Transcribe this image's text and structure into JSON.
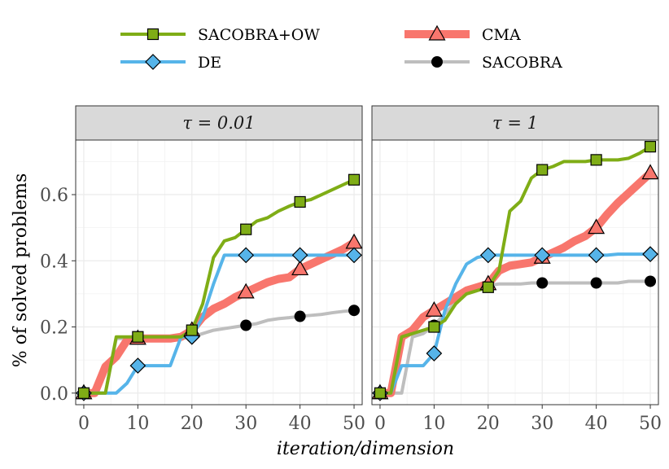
{
  "chart_data": {
    "type": "line",
    "xlabel": "iteration/dimension",
    "ylabel": "% of solved problems",
    "xlim": [
      -1.5,
      51.5
    ],
    "ylim": [
      -0.035,
      0.765
    ],
    "x_ticks": [
      0,
      10,
      20,
      30,
      40,
      50
    ],
    "y_ticks": [
      0.0,
      0.2,
      0.4,
      0.6
    ],
    "x_tick_labels": [
      "0",
      "10",
      "20",
      "30",
      "40",
      "50"
    ],
    "y_tick_labels": [
      "0.0",
      "0.2",
      "0.4",
      "0.6"
    ],
    "grid": true,
    "legend_position": "top",
    "legend": [
      {
        "name": "SACOBRA+OW",
        "color": "#7fad16",
        "marker": "square"
      },
      {
        "name": "DE",
        "color": "#56b4e9",
        "marker": "diamond"
      },
      {
        "name": "CMA",
        "color": "#f8766d",
        "marker": "triangle"
      },
      {
        "name": "SACOBRA",
        "color": "#bebebe",
        "marker": "circle"
      }
    ],
    "panels": [
      {
        "title": "τ = 0.01",
        "series": [
          {
            "name": "SACOBRA+OW",
            "x": [
              0,
              2,
              4,
              6,
              8,
              10,
              12,
              14,
              16,
              18,
              20,
              22,
              24,
              26,
              28,
              30,
              32,
              34,
              36,
              38,
              40,
              42,
              44,
              46,
              48,
              50
            ],
            "y": [
              0,
              0,
              0,
              0.17,
              0.17,
              0.17,
              0.17,
              0.17,
              0.17,
              0.17,
              0.19,
              0.27,
              0.41,
              0.46,
              0.47,
              0.495,
              0.52,
              0.53,
              0.55,
              0.565,
              0.578,
              0.585,
              0.6,
              0.615,
              0.63,
              0.645
            ],
            "markers_x": [
              0,
              10,
              20,
              30,
              40,
              50
            ],
            "markers_y": [
              0,
              0.17,
              0.19,
              0.495,
              0.578,
              0.645
            ]
          },
          {
            "name": "DE",
            "x": [
              0,
              2,
              4,
              6,
              8,
              10,
              12,
              14,
              16,
              18,
              20,
              22,
              24,
              26,
              28,
              30,
              32,
              34,
              36,
              38,
              40,
              42,
              44,
              46,
              48,
              50
            ],
            "y": [
              0,
              0,
              0,
              0,
              0.03,
              0.083,
              0.083,
              0.083,
              0.083,
              0.17,
              0.17,
              0.23,
              0.33,
              0.417,
              0.417,
              0.417,
              0.417,
              0.417,
              0.417,
              0.417,
              0.417,
              0.417,
              0.417,
              0.417,
              0.417,
              0.417
            ],
            "markers_x": [
              0,
              10,
              20,
              30,
              40,
              50
            ],
            "markers_y": [
              0,
              0.083,
              0.17,
              0.417,
              0.417,
              0.417
            ]
          },
          {
            "name": "CMA",
            "x": [
              0,
              2,
              4,
              6,
              8,
              10,
              12,
              14,
              16,
              18,
              20,
              22,
              24,
              26,
              28,
              30,
              32,
              34,
              36,
              38,
              40,
              42,
              44,
              46,
              48,
              50
            ],
            "y": [
              0,
              0,
              0.08,
              0.11,
              0.16,
              0.165,
              0.165,
              0.165,
              0.165,
              0.17,
              0.19,
              0.23,
              0.255,
              0.27,
              0.29,
              0.305,
              0.32,
              0.335,
              0.345,
              0.35,
              0.375,
              0.39,
              0.405,
              0.42,
              0.435,
              0.455
            ],
            "markers_x": [
              0,
              10,
              20,
              30,
              40,
              50
            ],
            "markers_y": [
              0,
              0.165,
              0.19,
              0.305,
              0.375,
              0.455
            ]
          },
          {
            "name": "SACOBRA",
            "x": [
              0,
              2,
              4,
              6,
              8,
              10,
              12,
              14,
              16,
              18,
              20,
              22,
              24,
              26,
              28,
              30,
              32,
              34,
              36,
              38,
              40,
              42,
              44,
              46,
              48,
              50
            ],
            "y": [
              0,
              0,
              0,
              0.165,
              0.165,
              0.165,
              0.165,
              0.165,
              0.165,
              0.165,
              0.17,
              0.18,
              0.19,
              0.195,
              0.2,
              0.205,
              0.21,
              0.22,
              0.225,
              0.228,
              0.232,
              0.235,
              0.238,
              0.243,
              0.247,
              0.25
            ],
            "markers_x": [
              0,
              10,
              20,
              30,
              40,
              50
            ],
            "markers_y": [
              0,
              0.165,
              0.17,
              0.205,
              0.232,
              0.25
            ]
          }
        ]
      },
      {
        "title": "τ = 1",
        "series": [
          {
            "name": "SACOBRA+OW",
            "x": [
              0,
              2,
              4,
              6,
              8,
              10,
              12,
              14,
              16,
              18,
              20,
              22,
              24,
              26,
              28,
              30,
              32,
              34,
              36,
              38,
              40,
              42,
              44,
              46,
              48,
              50
            ],
            "y": [
              0,
              0,
              0.17,
              0.18,
              0.19,
              0.2,
              0.22,
              0.27,
              0.3,
              0.31,
              0.32,
              0.37,
              0.55,
              0.58,
              0.65,
              0.675,
              0.685,
              0.7,
              0.7,
              0.7,
              0.705,
              0.705,
              0.705,
              0.71,
              0.725,
              0.745
            ],
            "markers_x": [
              0,
              10,
              20,
              30,
              40,
              50
            ],
            "markers_y": [
              0,
              0.2,
              0.32,
              0.675,
              0.705,
              0.745
            ]
          },
          {
            "name": "DE",
            "x": [
              0,
              2,
              4,
              6,
              8,
              10,
              12,
              14,
              16,
              18,
              20,
              22,
              24,
              26,
              28,
              30,
              32,
              34,
              36,
              38,
              40,
              42,
              44,
              46,
              48,
              50
            ],
            "y": [
              0,
              0,
              0.083,
              0.083,
              0.083,
              0.12,
              0.25,
              0.33,
              0.39,
              0.41,
              0.417,
              0.417,
              0.417,
              0.417,
              0.417,
              0.417,
              0.417,
              0.417,
              0.417,
              0.417,
              0.417,
              0.417,
              0.42,
              0.42,
              0.42,
              0.42
            ],
            "markers_x": [
              0,
              10,
              20,
              30,
              40,
              50
            ],
            "markers_y": [
              0,
              0.12,
              0.417,
              0.417,
              0.417,
              0.42
            ]
          },
          {
            "name": "CMA",
            "x": [
              0,
              2,
              4,
              6,
              8,
              10,
              12,
              14,
              16,
              18,
              20,
              22,
              24,
              26,
              28,
              30,
              32,
              34,
              36,
              38,
              40,
              42,
              44,
              46,
              48,
              50
            ],
            "y": [
              0,
              0,
              0.17,
              0.19,
              0.23,
              0.25,
              0.27,
              0.29,
              0.31,
              0.32,
              0.33,
              0.37,
              0.385,
              0.39,
              0.395,
              0.41,
              0.425,
              0.44,
              0.46,
              0.475,
              0.5,
              0.54,
              0.575,
              0.605,
              0.635,
              0.665
            ],
            "markers_x": [
              0,
              10,
              20,
              30,
              40,
              50
            ],
            "markers_y": [
              0,
              0.25,
              0.33,
              0.41,
              0.5,
              0.665
            ]
          },
          {
            "name": "SACOBRA",
            "x": [
              0,
              2,
              4,
              6,
              8,
              10,
              12,
              14,
              16,
              18,
              20,
              22,
              24,
              26,
              28,
              30,
              32,
              34,
              36,
              38,
              40,
              42,
              44,
              46,
              48,
              50
            ],
            "y": [
              0,
              0,
              0,
              0.17,
              0.18,
              0.205,
              0.24,
              0.275,
              0.3,
              0.31,
              0.325,
              0.33,
              0.33,
              0.33,
              0.333,
              0.333,
              0.333,
              0.333,
              0.333,
              0.333,
              0.333,
              0.333,
              0.333,
              0.338,
              0.338,
              0.338
            ],
            "markers_x": [
              0,
              10,
              20,
              30,
              40,
              50
            ],
            "markers_y": [
              0,
              0.205,
              0.325,
              0.333,
              0.333,
              0.338
            ]
          }
        ]
      }
    ]
  }
}
